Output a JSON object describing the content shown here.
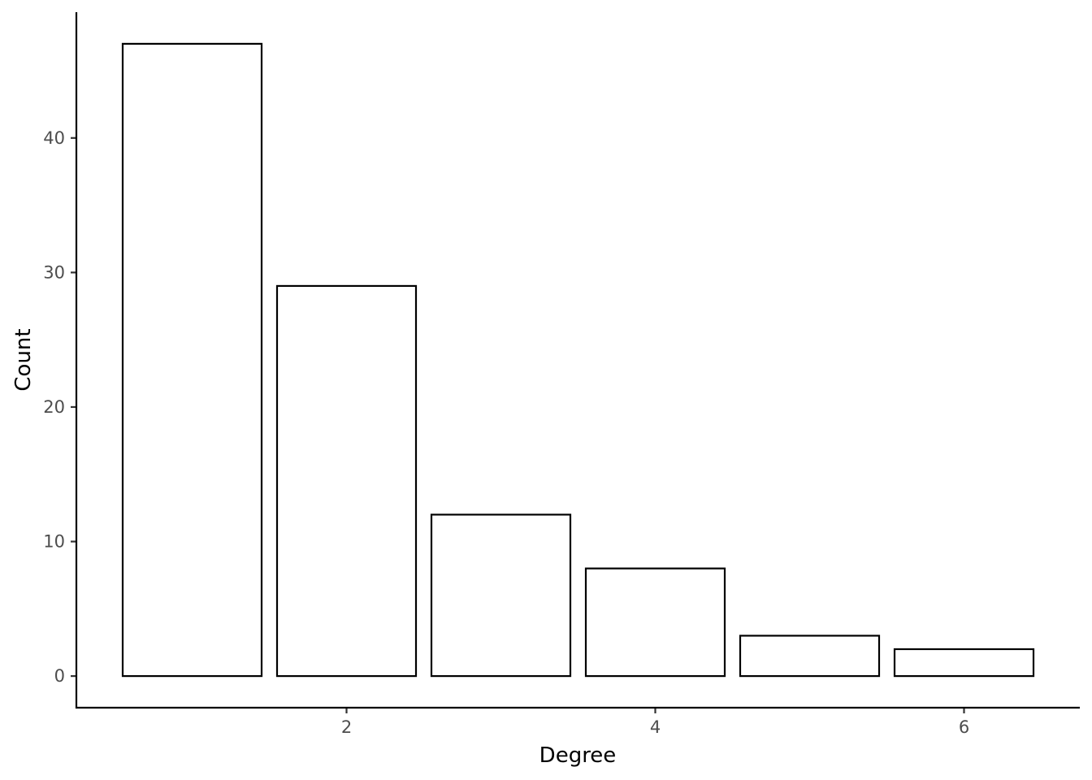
{
  "chart_data": {
    "type": "bar",
    "x": [
      1,
      2,
      3,
      4,
      5,
      6
    ],
    "values": [
      47,
      29,
      12,
      8,
      3,
      2
    ],
    "xlabel": "Degree",
    "ylabel": "Count",
    "xticks": [
      2,
      4,
      6
    ],
    "yticks": [
      0,
      10,
      20,
      30,
      40
    ],
    "xlim": [
      0.25,
      6.75
    ],
    "ylim": [
      -2.35,
      49.35
    ],
    "bar_width": 0.9,
    "grid": false,
    "colors": {
      "bar_fill": "#ffffff",
      "bar_stroke": "#000000",
      "axis": "#000000",
      "tick_label": "#4d4d4d"
    }
  }
}
